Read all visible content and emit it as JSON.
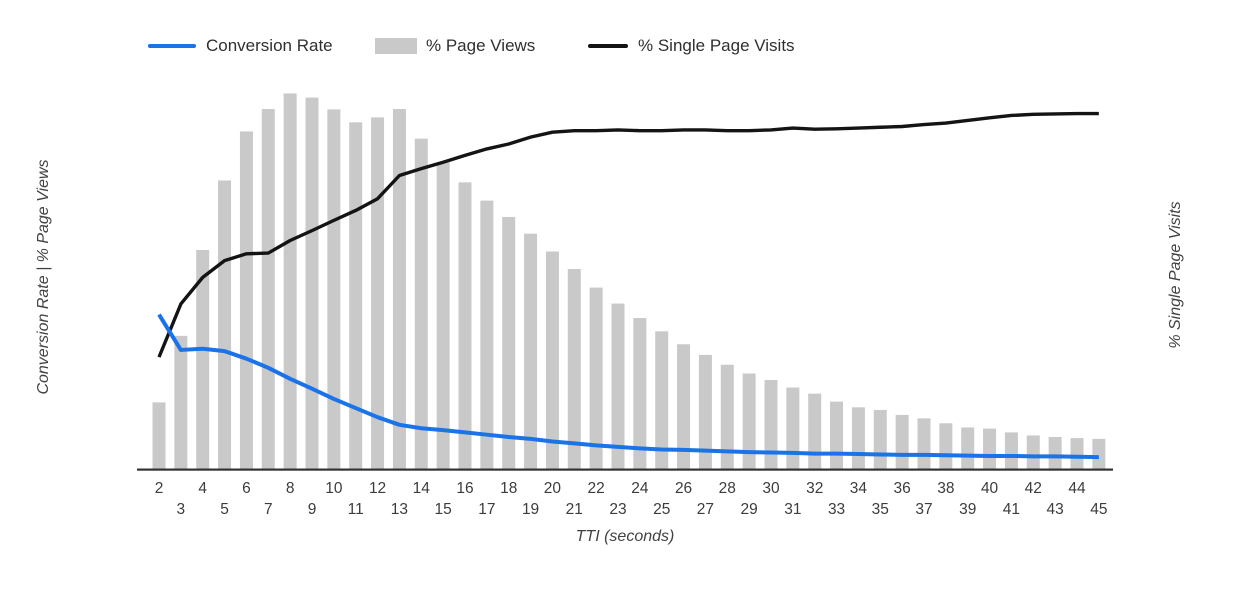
{
  "chart_data": {
    "type": "combo",
    "x": [
      2,
      3,
      4,
      5,
      6,
      7,
      8,
      9,
      10,
      11,
      12,
      13,
      14,
      15,
      16,
      17,
      18,
      19,
      20,
      21,
      22,
      23,
      24,
      25,
      26,
      27,
      28,
      29,
      30,
      31,
      32,
      33,
      34,
      35,
      36,
      37,
      38,
      39,
      40,
      41,
      42,
      43,
      44,
      45
    ],
    "xlabel": "TTI (seconds)",
    "ylabel_left": "Conversion Rate | % Page Views",
    "ylabel_right": "% Single Page Visits",
    "ylim": [
      0,
      100
    ],
    "grid": false,
    "legend_position": "top",
    "note": "value axes have no numeric tick labels in the image; series values are estimated as percent of full plot height",
    "series": [
      {
        "name": "Conversion Rate",
        "type": "line",
        "axis": "left",
        "color": "#1a73e8",
        "values": [
          40.5,
          31.2,
          31.5,
          30.9,
          28.9,
          26.5,
          23.6,
          21.0,
          18.3,
          15.9,
          13.5,
          11.5,
          10.6,
          10.1,
          9.5,
          8.9,
          8.3,
          7.8,
          7.1,
          6.6,
          6.1,
          5.7,
          5.3,
          5.0,
          4.9,
          4.7,
          4.5,
          4.3,
          4.2,
          4.1,
          3.9,
          3.9,
          3.8,
          3.7,
          3.6,
          3.6,
          3.5,
          3.4,
          3.3,
          3.3,
          3.2,
          3.2,
          3.1,
          3.0
        ]
      },
      {
        "name": "% Page Views",
        "type": "bar",
        "axis": "left",
        "color": "#c9c9c9",
        "values": [
          17.4,
          34.9,
          57.5,
          75.8,
          88.7,
          94.6,
          98.7,
          97.6,
          94.5,
          91.1,
          92.4,
          94.6,
          86.8,
          80.6,
          75.3,
          70.5,
          66.2,
          61.8,
          57.1,
          52.5,
          47.6,
          43.4,
          39.6,
          36.1,
          32.7,
          29.9,
          27.3,
          25.0,
          23.3,
          21.3,
          19.7,
          17.6,
          16.1,
          15.4,
          14.1,
          13.2,
          11.9,
          10.8,
          10.5,
          9.5,
          8.7,
          8.3,
          8.0,
          7.8
        ]
      },
      {
        "name": "% Single Page Visits",
        "type": "line",
        "axis": "right",
        "color": "#141414",
        "values": [
          29.3,
          43.3,
          50.3,
          54.7,
          56.5,
          56.7,
          60.0,
          62.6,
          65.3,
          67.9,
          71.0,
          77.1,
          78.9,
          80.6,
          82.4,
          84.1,
          85.4,
          87.2,
          88.5,
          88.9,
          88.9,
          89.1,
          88.9,
          88.9,
          89.1,
          89.1,
          88.9,
          88.9,
          89.1,
          89.6,
          89.3,
          89.4,
          89.6,
          89.8,
          90.0,
          90.5,
          90.9,
          91.6,
          92.3,
          92.9,
          93.2,
          93.3,
          93.4,
          93.4
        ]
      }
    ]
  },
  "colors": {
    "background": "#ffffff",
    "axis_line": "#333333",
    "tick_text": "#3c3c3c",
    "axis_title_text": "#424242",
    "legend_text": "#2f2f2f"
  }
}
